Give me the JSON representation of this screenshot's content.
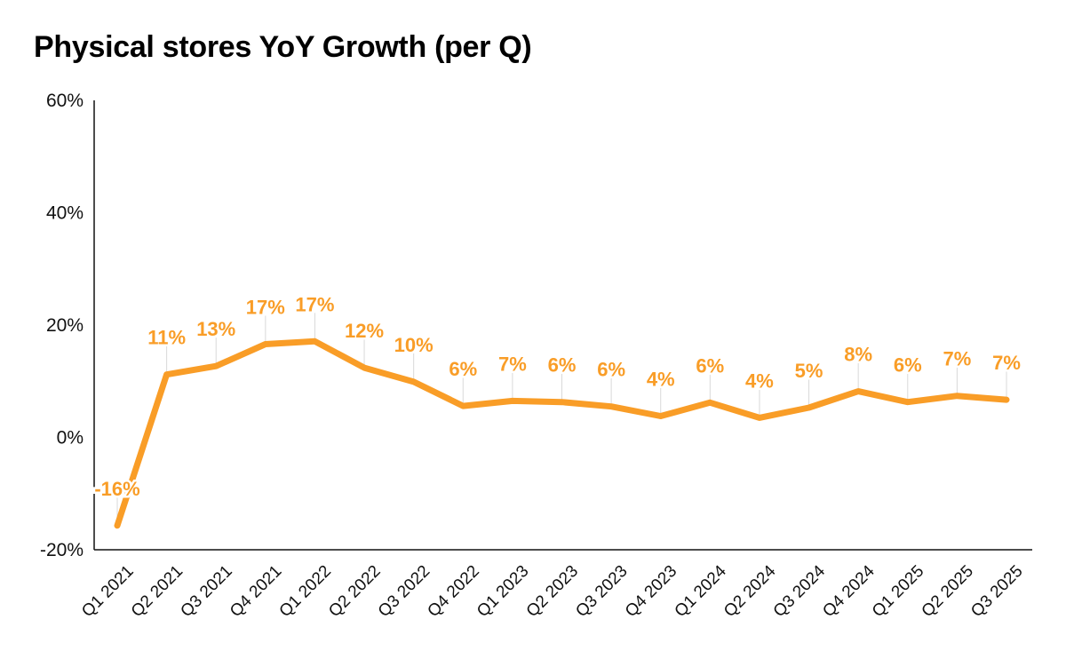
{
  "chart_data": {
    "type": "line",
    "title": "Physical stores YoY Growth (per Q)",
    "categories": [
      "Q1 2021",
      "Q2 2021",
      "Q3 2021",
      "Q4 2021",
      "Q1 2022",
      "Q2 2022",
      "Q3 2022",
      "Q4 2022",
      "Q1 2023",
      "Q2 2023",
      "Q3 2023",
      "Q4 2023",
      "Q1 2024",
      "Q2 2024",
      "Q3 2024",
      "Q4 2024",
      "Q1 2025",
      "Q2 2025",
      "Q3 2025"
    ],
    "series": [
      {
        "values": [
          -15.7,
          11.2,
          12.7,
          16.6,
          17.1,
          12.4,
          9.9,
          5.6,
          6.5,
          6.3,
          5.5,
          3.8,
          6.2,
          3.5,
          5.3,
          8.2,
          6.3,
          7.4,
          6.7
        ],
        "labels": [
          "-16%",
          "11%",
          "13%",
          "17%",
          "17%",
          "12%",
          "10%",
          "6%",
          "7%",
          "6%",
          "6%",
          "4%",
          "6%",
          "4%",
          "5%",
          "8%",
          "6%",
          "7%",
          "7%"
        ]
      }
    ],
    "y_ticks": [
      "60%",
      "40%",
      "20%",
      "0%",
      "-20%"
    ],
    "ylim": [
      -20,
      60
    ],
    "grid": false,
    "line_color": "#F99D27",
    "label_color": "#F99D27",
    "axis_color": "#111111"
  }
}
